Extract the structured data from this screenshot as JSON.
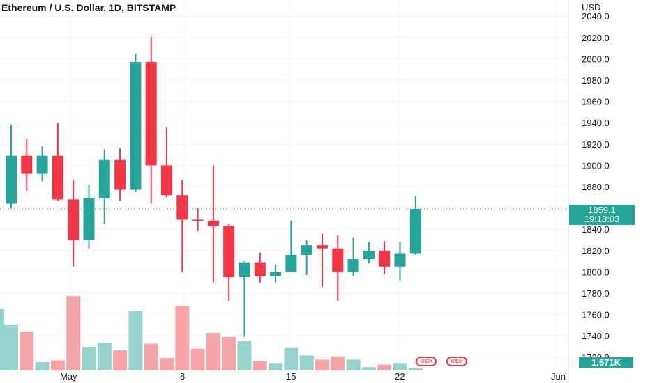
{
  "header": {
    "title": "Ethereum / U.S. Dollar, 1D, BITSTAMP",
    "currency": "USD"
  },
  "last_price": {
    "price": "1859.1",
    "countdown": "19:13:03"
  },
  "volume_label": "1.571K",
  "colors": {
    "up": "#26a69a",
    "down": "#f23645",
    "up_volume": "#95d3cc",
    "down_volume": "#f7a4a6",
    "grid": "#f0f3fa",
    "price_line": "#26a69a"
  },
  "events": [
    {
      "icon": "dividends-event-icon"
    },
    {
      "icon": "dividends-event-icon"
    }
  ],
  "chart_data": {
    "type": "candlestick",
    "y_ticks": [
      "2040.0",
      "2020.0",
      "2000.0",
      "1980.0",
      "1960.0",
      "1940.0",
      "1920.0",
      "1900.0",
      "1880.0",
      "1860.0",
      "1840.0",
      "1820.0",
      "1800.0",
      "1780.0",
      "1760.0",
      "1740.0",
      "1720.0"
    ],
    "x_ticks": [
      "May",
      "8",
      "15",
      "22",
      "Jun"
    ],
    "ylim": [
      1714,
      2050
    ],
    "candles": [
      {
        "date": "04-29",
        "open": 1864,
        "high": 1938,
        "low": 1860,
        "close": 1909,
        "volume_level": 0.55
      },
      {
        "date": "04-30",
        "open": 1909,
        "high": 1925,
        "low": 1876,
        "close": 1892,
        "volume_level": 0.46
      },
      {
        "date": "05-01",
        "open": 1892,
        "high": 1918,
        "low": 1885,
        "close": 1909,
        "volume_level": 0.1
      },
      {
        "date": "05-02",
        "open": 1909,
        "high": 1940,
        "low": 1867,
        "close": 1868,
        "volume_level": 0.12
      },
      {
        "date": "05-03",
        "open": 1868,
        "high": 1886,
        "low": 1805,
        "close": 1830,
        "volume_level": 0.89
      },
      {
        "date": "05-04",
        "open": 1830,
        "high": 1882,
        "low": 1822,
        "close": 1869,
        "volume_level": 0.28
      },
      {
        "date": "05-05",
        "open": 1869,
        "high": 1915,
        "low": 1845,
        "close": 1905,
        "volume_level": 0.33
      },
      {
        "date": "05-06",
        "open": 1905,
        "high": 1916,
        "low": 1867,
        "close": 1877,
        "volume_level": 0.24
      },
      {
        "date": "05-07",
        "open": 1877,
        "high": 2005,
        "low": 1875,
        "close": 1997,
        "volume_level": 0.71
      },
      {
        "date": "05-08",
        "open": 1997,
        "high": 2021,
        "low": 1864,
        "close": 1900,
        "volume_level": 0.32
      },
      {
        "date": "05-09",
        "open": 1900,
        "high": 1936,
        "low": 1870,
        "close": 1872,
        "volume_level": 0.15
      },
      {
        "date": "05-10",
        "open": 1872,
        "high": 1886,
        "low": 1800,
        "close": 1849,
        "volume_level": 0.77
      },
      {
        "date": "05-11",
        "open": 1849,
        "high": 1860,
        "low": 1838,
        "close": 1848,
        "volume_level": 0.26
      },
      {
        "date": "05-12",
        "open": 1848,
        "high": 1900,
        "low": 1790,
        "close": 1843,
        "volume_level": 0.45
      },
      {
        "date": "05-13",
        "open": 1843,
        "high": 1845,
        "low": 1773,
        "close": 1795,
        "volume_level": 0.4
      },
      {
        "date": "05-14",
        "open": 1795,
        "high": 1810,
        "low": 1739,
        "close": 1809,
        "volume_level": 0.35
      },
      {
        "date": "05-15",
        "open": 1809,
        "high": 1818,
        "low": 1790,
        "close": 1796,
        "volume_level": 0.11
      },
      {
        "date": "05-16",
        "open": 1796,
        "high": 1807,
        "low": 1790,
        "close": 1800,
        "volume_level": 0.09
      },
      {
        "date": "05-17",
        "open": 1800,
        "high": 1848,
        "low": 1800,
        "close": 1816,
        "volume_level": 0.27
      },
      {
        "date": "05-18",
        "open": 1816,
        "high": 1830,
        "low": 1797,
        "close": 1825,
        "volume_level": 0.18
      },
      {
        "date": "05-19",
        "open": 1825,
        "high": 1836,
        "low": 1786,
        "close": 1822,
        "volume_level": 0.13
      },
      {
        "date": "05-20",
        "open": 1822,
        "high": 1834,
        "low": 1773,
        "close": 1800,
        "volume_level": 0.17
      },
      {
        "date": "05-21",
        "open": 1800,
        "high": 1832,
        "low": 1796,
        "close": 1812,
        "volume_level": 0.13
      },
      {
        "date": "05-22",
        "open": 1812,
        "high": 1828,
        "low": 1808,
        "close": 1820,
        "volume_level": 0.04
      },
      {
        "date": "05-23",
        "open": 1820,
        "high": 1829,
        "low": 1798,
        "close": 1805,
        "volume_level": 0.07
      },
      {
        "date": "05-24",
        "open": 1805,
        "high": 1828,
        "low": 1792,
        "close": 1817,
        "volume_level": 0.09
      },
      {
        "date": "05-25",
        "open": 1817,
        "high": 1871,
        "low": 1816,
        "close": 1859,
        "volume_level": 0.03
      }
    ]
  }
}
